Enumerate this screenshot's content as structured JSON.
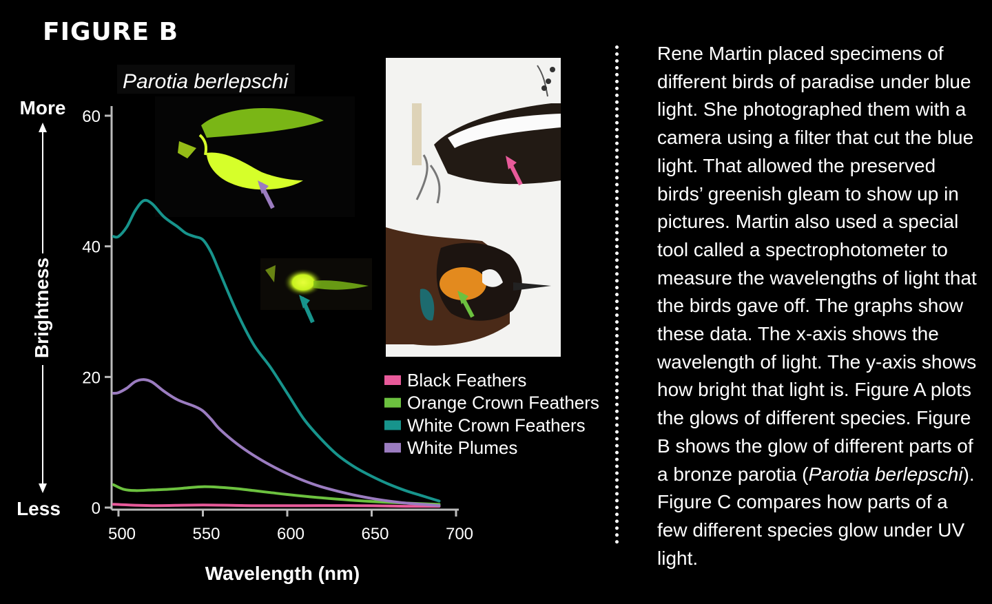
{
  "figure_title": "FIGURE B",
  "description": {
    "before": "Rene Martin placed specimens of different birds of paradise under blue light. She photographed them with a camera using a filter that cut the blue light. That allowed the preserved birds’ greenish gleam to show up in pictures. Martin also used a special tool called a spectrophotometer to measure the wavelengths of light that the birds gave off. The graphs show these data. The x-axis shows the wavelength of light. The y-axis shows how bright that light is. Figure A plots the glows of different species. Figure B shows the glow of different parts of a bronze parotia (",
    "italic": "Parotia berlepschi",
    "after": "). Figure C compares how parts of a few different species glow under UV light."
  },
  "colors": {
    "background": "#000000",
    "axis": "#bbbbbb",
    "pink": "#e85a9a",
    "green": "#6cc13f",
    "teal": "#17948c",
    "purple": "#9b7cc0"
  },
  "chart_data": {
    "type": "line",
    "title": "",
    "subtitle": "Parotia berlepschi",
    "xlabel": "Wavelength (nm)",
    "ylabel": "Brightness",
    "ylabel_top": "More",
    "ylabel_bottom": "Less",
    "xlim": [
      500,
      700
    ],
    "ylim": [
      0,
      60
    ],
    "xticks": [
      500,
      550,
      600,
      650,
      700
    ],
    "yticks": [
      0,
      20,
      40,
      60
    ],
    "grid": false,
    "legend_position": "right",
    "series": [
      {
        "name": "Black Feathers",
        "color": "#e85a9a",
        "x": [
          497,
          520,
          550,
          580,
          610,
          640,
          670,
          690
        ],
        "y": [
          0.5,
          0.3,
          0.4,
          0.3,
          0.3,
          0.3,
          0.2,
          0.2
        ]
      },
      {
        "name": "Orange Crown Feathers",
        "color": "#6cc13f",
        "x": [
          497,
          503,
          510,
          520,
          530,
          540,
          550,
          560,
          570,
          580,
          590,
          600,
          620,
          640,
          660,
          690
        ],
        "y": [
          3.5,
          2.8,
          2.6,
          2.7,
          2.8,
          3.0,
          3.2,
          3.1,
          2.9,
          2.6,
          2.3,
          2.0,
          1.5,
          1.1,
          0.8,
          0.5
        ]
      },
      {
        "name": "White Crown Feathers",
        "color": "#17948c",
        "x": [
          497,
          500,
          505,
          510,
          515,
          520,
          527,
          535,
          540,
          545,
          550,
          555,
          560,
          570,
          580,
          590,
          600,
          610,
          620,
          630,
          640,
          650,
          660,
          670,
          680,
          690
        ],
        "y": [
          41.5,
          41.5,
          43,
          45.5,
          47,
          46.5,
          44.5,
          43,
          42,
          41.5,
          41,
          39,
          36,
          30,
          25,
          21.5,
          17.5,
          13.5,
          10.5,
          8,
          6.2,
          4.8,
          3.6,
          2.6,
          1.8,
          1.0
        ]
      },
      {
        "name": "White Plumes",
        "color": "#9b7cc0",
        "x": [
          497,
          500,
          505,
          510,
          515,
          520,
          527,
          535,
          545,
          550,
          555,
          560,
          570,
          580,
          590,
          600,
          610,
          620,
          630,
          640,
          650,
          660,
          670,
          680,
          690
        ],
        "y": [
          17.5,
          17.6,
          18.3,
          19.3,
          19.6,
          19.2,
          17.8,
          16.5,
          15.5,
          14.8,
          13.5,
          12.0,
          9.8,
          8.0,
          6.5,
          5.2,
          4.1,
          3.2,
          2.5,
          1.9,
          1.4,
          1.0,
          0.7,
          0.5,
          0.3
        ]
      }
    ]
  }
}
